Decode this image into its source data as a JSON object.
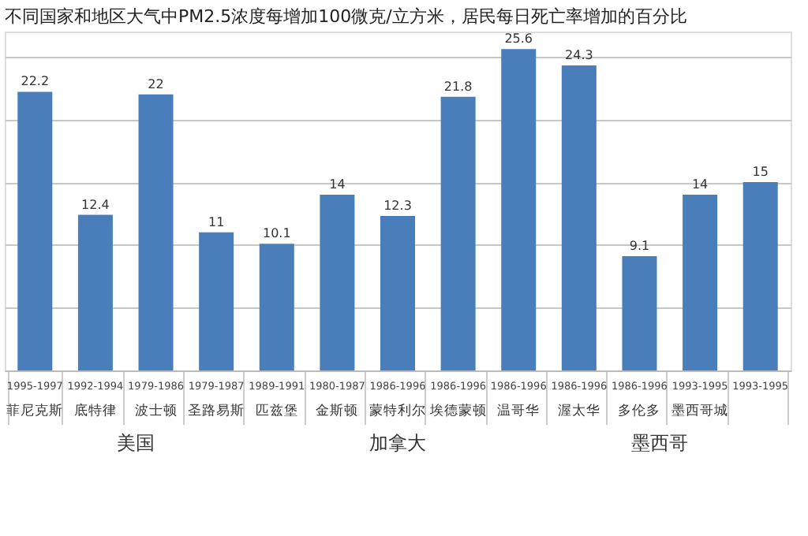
{
  "chart_data": {
    "type": "bar",
    "title": "不同国家和地区大气中PM2.5浓度每增加100微克/立方米，居民每日死亡率增加的百分比",
    "categories": [
      "1995-1997 菲尼克斯",
      "1992-1994 底特律",
      "1979-1986 波士顿",
      "1979-1987 圣路易斯",
      "1989-1991 匹兹堡",
      "1980-1987 金斯顿",
      "1986-1996 蒙特利尔",
      "1986-1996 埃德蒙顿",
      "1986-1996 温哥华",
      "1986-1996 渥太华",
      "1986-1996 多伦多",
      "1993-1995 墨西哥城",
      "1993-1995"
    ],
    "values": [
      22.2,
      12.4,
      22,
      11,
      10.1,
      14,
      12.3,
      21.8,
      25.6,
      24.3,
      9.1,
      14,
      15
    ],
    "color": "#4a7ebb",
    "data_labels": true,
    "ylim": [
      0,
      27
    ],
    "grid": "y",
    "tick_labels": "x",
    "annotations": [
      "美国",
      "加拿大",
      "墨西哥"
    ]
  }
}
